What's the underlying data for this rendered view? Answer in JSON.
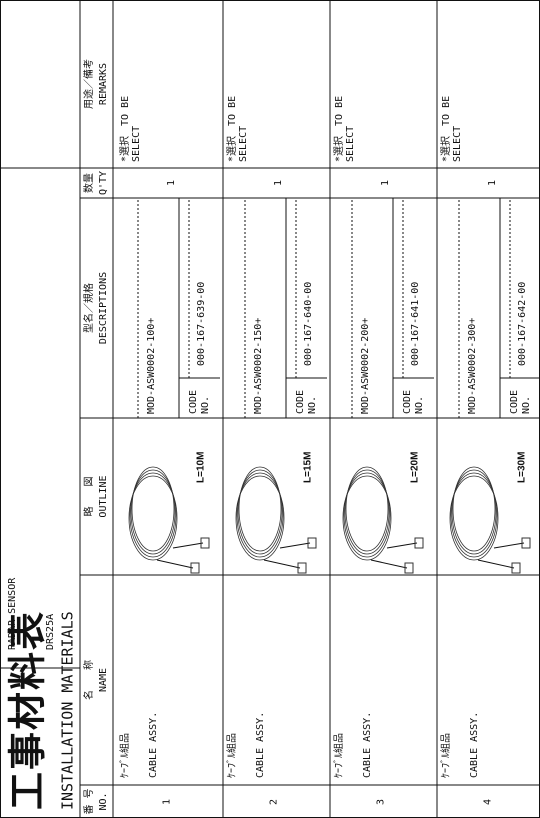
{
  "header": {
    "title": "工事材料表",
    "subtitle": "INSTALLATION MATERIALS",
    "product": "RADAR SENSOR",
    "model": "DRS25A"
  },
  "columns": [
    {
      "ja": "番 号",
      "en": "NO."
    },
    {
      "ja": "名　　称",
      "en": "NAME"
    },
    {
      "ja": "略　　図",
      "en": "OUTLINE"
    },
    {
      "ja": "型名／規格",
      "en": "DESCRIPTIONS"
    },
    {
      "ja": "数量",
      "en": "Q'TY"
    },
    {
      "ja": "用途／備考",
      "en": "REMARKS"
    }
  ],
  "rows": [
    {
      "no": "1",
      "name_ja": "ｹｰﾌﾞﾙ組品",
      "name_en": "CABLE ASSY.",
      "length": "L=10M",
      "type": "MOD-ASW0002-100+",
      "code_label": [
        "CODE",
        "NO."
      ],
      "code": "000-167-639-00",
      "qty": "1",
      "remarks": [
        "*選択　TO BE",
        "SELECT"
      ]
    },
    {
      "no": "2",
      "name_ja": "ｹｰﾌﾞﾙ組品",
      "name_en": "CABLE ASSY.",
      "length": "L=15M",
      "type": "MOD-ASW0002-150+",
      "code_label": [
        "CODE",
        "NO."
      ],
      "code": "000-167-640-00",
      "qty": "1",
      "remarks": [
        "*選択　TO BE",
        "SELECT"
      ]
    },
    {
      "no": "3",
      "name_ja": "ｹｰﾌﾞﾙ組品",
      "name_en": "CABLE ASSY.",
      "length": "L=20M",
      "type": "MOD-ASW0002-200+",
      "code_label": [
        "CODE",
        "NO."
      ],
      "code": "000-167-641-00",
      "qty": "1",
      "remarks": [
        "*選択　TO BE",
        "SELECT"
      ]
    },
    {
      "no": "4",
      "name_ja": "ｹｰﾌﾞﾙ組品",
      "name_en": "CABLE ASSY.",
      "length": "L=30M",
      "type": "MOD-ASW0002-300+",
      "code_label": [
        "CODE",
        "NO."
      ],
      "code": "000-167-642-00",
      "qty": "1",
      "remarks": [
        "*選択　TO BE",
        "SELECT"
      ]
    }
  ]
}
